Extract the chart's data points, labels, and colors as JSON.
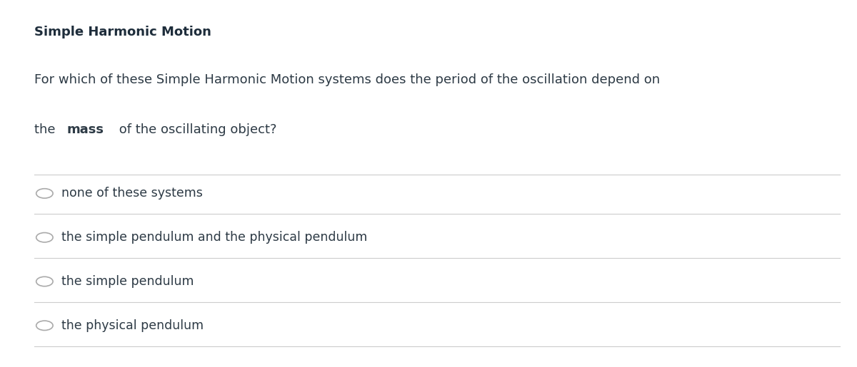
{
  "title": "Simple Harmonic Motion",
  "question_line1": "For which of these Simple Harmonic Motion systems does the period of the oscillation depend on",
  "question_line2_normal": "the ",
  "question_line2_bold": "mass",
  "question_line2_end": " of the oscillating object?",
  "options": [
    "none of these systems",
    "the simple pendulum and the physical pendulum",
    "the simple pendulum",
    "the physical pendulum"
  ],
  "background_color": "#ffffff",
  "text_color": "#2d3a45",
  "title_color": "#1e2d3b",
  "line_color": "#cccccc",
  "circle_color": "#aaaaaa",
  "title_fontsize": 13,
  "question_fontsize": 13,
  "option_fontsize": 12.5,
  "font_family": "DejaVu Sans"
}
